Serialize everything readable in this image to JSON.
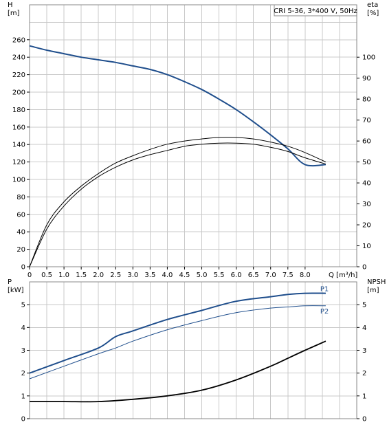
{
  "title_box": "CRI 5-36, 3*400 V, 50Hz",
  "chart_data": [
    {
      "type": "line",
      "panel": "top",
      "xlabel": "Q [m³/h]",
      "x_ticks": [
        "0",
        "0.5",
        "1.0",
        "1.5",
        "2.0",
        "2.5",
        "3.0",
        "3.5",
        "4.0",
        "4.5",
        "5.0",
        "5.5",
        "6.0",
        "6.5",
        "7.0",
        "7.5",
        "8.0"
      ],
      "xlim": [
        0,
        9.5
      ],
      "left_axis": {
        "label_line1": "H",
        "label_line2": "[m]",
        "ticks": [
          "0",
          "20",
          "40",
          "60",
          "80",
          "100",
          "120",
          "140",
          "160",
          "180",
          "200",
          "220",
          "240",
          "260"
        ],
        "ylim": [
          0,
          300
        ]
      },
      "right_axis": {
        "label_line1": "eta",
        "label_line2": "[%]",
        "ticks": [
          "0",
          "10",
          "20",
          "30",
          "40",
          "50",
          "60",
          "70",
          "80",
          "90",
          "100"
        ],
        "ylim": [
          0,
          125
        ]
      },
      "grid": true,
      "series": [
        {
          "axis": "left",
          "color": "#1f4e8c",
          "x": [
            0,
            0.5,
            1.0,
            1.5,
            2.0,
            2.5,
            3.0,
            3.5,
            4.0,
            4.5,
            5.0,
            5.5,
            6.0,
            6.5,
            7.0,
            7.5,
            8.0,
            8.6
          ],
          "y": [
            253,
            248,
            244,
            240,
            237,
            234,
            230,
            226,
            220,
            212,
            203,
            192,
            180,
            166,
            151,
            135,
            117,
            117
          ]
        },
        {
          "axis": "right",
          "color": "#000000",
          "x": [
            0,
            0.5,
            1.0,
            1.5,
            2.0,
            2.5,
            3.0,
            3.5,
            4.0,
            4.5,
            5.0,
            5.5,
            6.0,
            6.5,
            7.0,
            7.5,
            8.0,
            8.6
          ],
          "y": [
            0,
            18,
            29,
            37,
            43,
            47.5,
            51,
            53.5,
            55.5,
            57.5,
            58.5,
            59,
            59,
            58.5,
            57,
            55,
            52,
            49
          ]
        },
        {
          "axis": "right",
          "color": "#000000",
          "x": [
            0,
            0.5,
            1.0,
            1.5,
            2.0,
            2.5,
            3.0,
            3.5,
            4.0,
            4.5,
            5.0,
            5.5,
            6.0,
            6.5,
            7.0,
            7.5,
            8.0,
            8.6
          ],
          "y": [
            0,
            20,
            31,
            38.5,
            44.5,
            49.5,
            53,
            56,
            58.5,
            60,
            61,
            61.7,
            61.7,
            61,
            59.5,
            57.5,
            54.5,
            50
          ]
        }
      ]
    },
    {
      "type": "line",
      "panel": "bottom",
      "left_axis": {
        "label_line1": "P",
        "label_line2": "[kW]",
        "ticks": [
          "0",
          "1",
          "2",
          "3",
          "4",
          "5"
        ],
        "ylim": [
          0,
          6
        ]
      },
      "right_axis": {
        "label_line1": "NPSH",
        "label_line2": "[m]",
        "ticks": [
          "0",
          "1",
          "2",
          "3",
          "4",
          "5"
        ],
        "ylim": [
          0,
          6
        ]
      },
      "xlim": [
        0,
        9.5
      ],
      "grid": true,
      "series": [
        {
          "name": "P1",
          "axis": "left",
          "color": "#1f4e8c",
          "x": [
            0,
            1.0,
            2.0,
            2.5,
            3.0,
            4.0,
            5.0,
            6.0,
            7.0,
            7.5,
            8.0,
            8.6
          ],
          "y": [
            2.0,
            2.55,
            3.1,
            3.6,
            3.85,
            4.35,
            4.75,
            5.15,
            5.35,
            5.45,
            5.5,
            5.5
          ]
        },
        {
          "name": "P2",
          "axis": "left",
          "color": "#1f4e8c",
          "x": [
            0,
            1.0,
            2.0,
            2.5,
            3.0,
            4.0,
            5.0,
            6.0,
            7.0,
            7.5,
            8.0,
            8.6
          ],
          "y": [
            1.75,
            2.3,
            2.85,
            3.1,
            3.4,
            3.9,
            4.3,
            4.65,
            4.85,
            4.9,
            4.95,
            4.95
          ]
        },
        {
          "axis": "right",
          "color": "#000000",
          "x": [
            0,
            1.0,
            2.0,
            3.0,
            4.0,
            5.0,
            6.0,
            7.0,
            7.5,
            8.0,
            8.6
          ],
          "y": [
            0.75,
            0.75,
            0.75,
            0.85,
            1.0,
            1.25,
            1.7,
            2.3,
            2.65,
            3.0,
            3.4
          ]
        }
      ]
    }
  ]
}
